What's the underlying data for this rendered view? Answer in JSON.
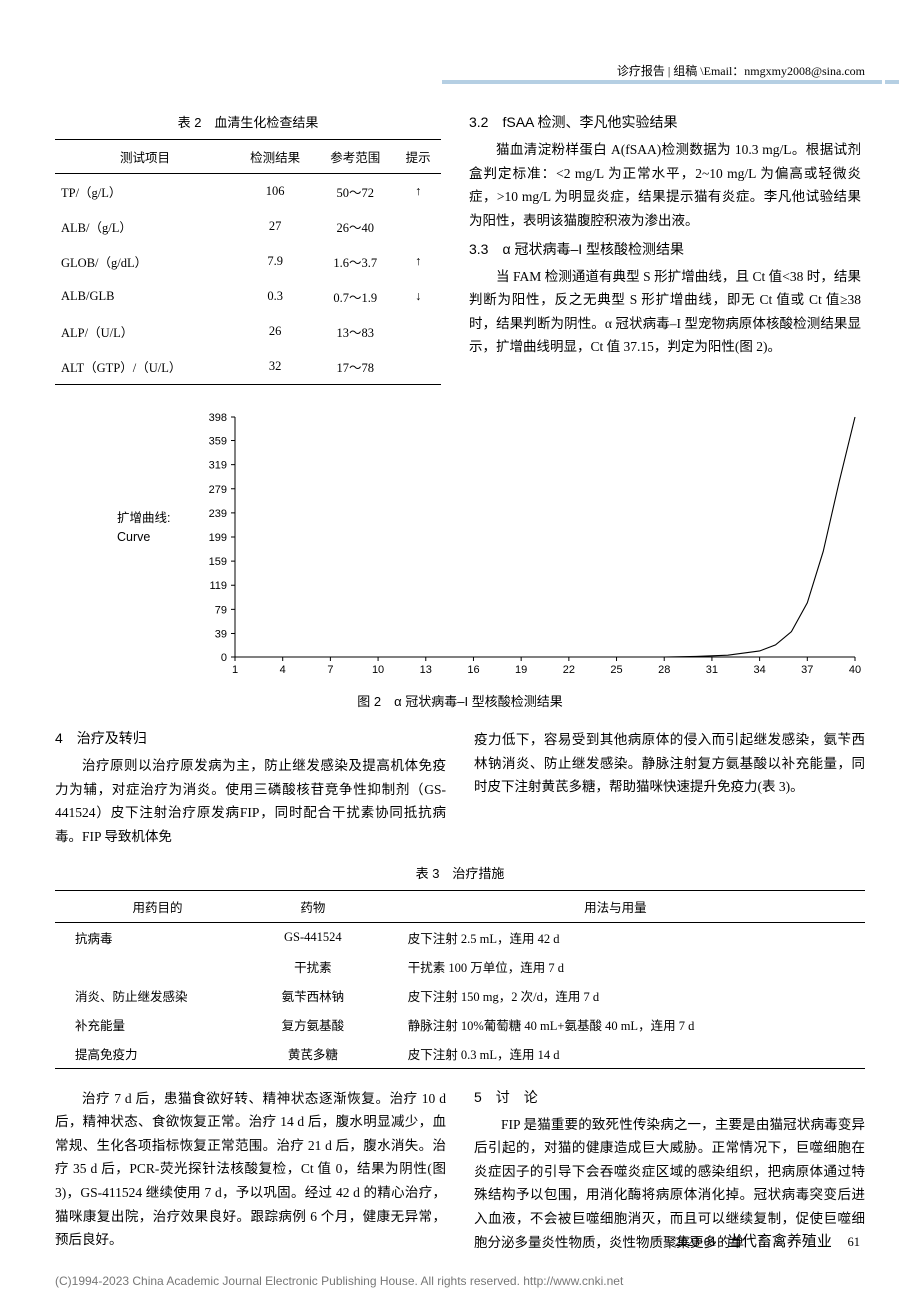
{
  "header": {
    "text": "诊疗报告 | 组稿 \\Email：nmgxmy2008@sina.com"
  },
  "table2": {
    "caption": "表 2　血清生化检查结果",
    "columns": [
      "测试项目",
      "检测结果",
      "参考范围",
      "提示"
    ],
    "rows": [
      [
        "TP/（g/L）",
        "106",
        "50～72",
        "↑"
      ],
      [
        "ALB/（g/L）",
        "27",
        "26～40",
        ""
      ],
      [
        "GLOB/（g/dL）",
        "7.9",
        "1.6～3.7",
        "↑"
      ],
      [
        "ALB/GLB",
        "0.3",
        "0.7～1.9",
        "↓"
      ],
      [
        "ALP/（U/L）",
        "26",
        "13～83",
        ""
      ],
      [
        "ALT（GTP）/（U/L）",
        "32",
        "17～78",
        ""
      ]
    ]
  },
  "section32": {
    "heading": "3.2　fSAA 检测、李凡他实验结果",
    "body": "猫血清淀粉样蛋白 A(fSAA)检测数据为 10.3 mg/L。根据试剂盒判定标准：<2 mg/L 为正常水平，2~10 mg/L 为偏高或轻微炎症，>10 mg/L 为明显炎症，结果提示猫有炎症。李凡他试验结果为阳性，表明该猫腹腔积液为渗出液。"
  },
  "section33": {
    "heading": "3.3　α 冠状病毒–I 型核酸检测结果",
    "body": "当 FAM 检测通道有典型 S 形扩增曲线，且 Ct 值<38 时，结果判断为阳性，反之无典型 S 形扩增曲线，即无 Ct 值或 Ct 值≥38 时，结果判断为阴性。α 冠状病毒–I 型宠物病原体核酸检测结果显示，扩增曲线明显，Ct 值 37.15，判定为阳性(图 2)。"
  },
  "chart": {
    "type": "line",
    "y_label_line1": "扩增曲线:",
    "y_label_line2": "Curve",
    "x_ticks": [
      1,
      4,
      7,
      10,
      13,
      16,
      19,
      22,
      25,
      28,
      31,
      34,
      37,
      40
    ],
    "y_ticks": [
      0,
      39,
      79,
      119,
      159,
      199,
      239,
      279,
      319,
      359,
      398
    ],
    "ylim": [
      0,
      398
    ],
    "xlim": [
      1,
      40
    ],
    "line_color": "#000000",
    "line_width": 1.1,
    "axis_color": "#000000",
    "background_color": "#ffffff",
    "tick_fontsize": 11,
    "series": [
      {
        "x": 1,
        "y": 0
      },
      {
        "x": 4,
        "y": 0
      },
      {
        "x": 7,
        "y": 0
      },
      {
        "x": 10,
        "y": 0
      },
      {
        "x": 13,
        "y": 0
      },
      {
        "x": 16,
        "y": 0
      },
      {
        "x": 19,
        "y": 0
      },
      {
        "x": 22,
        "y": 0
      },
      {
        "x": 25,
        "y": 0
      },
      {
        "x": 28,
        "y": 0
      },
      {
        "x": 30,
        "y": 1
      },
      {
        "x": 32,
        "y": 3
      },
      {
        "x": 34,
        "y": 10
      },
      {
        "x": 35,
        "y": 20
      },
      {
        "x": 36,
        "y": 42
      },
      {
        "x": 37,
        "y": 90
      },
      {
        "x": 38,
        "y": 175
      },
      {
        "x": 39,
        "y": 290
      },
      {
        "x": 40,
        "y": 398
      }
    ],
    "caption": "图 2　α 冠状病毒–I 型核酸检测结果"
  },
  "section4": {
    "heading": "4　治疗及转归",
    "body_left": "治疗原则以治疗原发病为主，防止继发感染及提高机体免疫力为辅，对症治疗为消炎。使用三磷酸核苷竞争性抑制剂（GS-441524）皮下注射治疗原发病FIP，同时配合干扰素协同抵抗病毒。FIP 导致机体免",
    "body_right": "疫力低下，容易受到其他病原体的侵入而引起继发感染，氨苄西林钠消炎、防止继发感染。静脉注射复方氨基酸以补充能量，同时皮下注射黄芪多糖，帮助猫咪快速提升免疫力(表 3)。"
  },
  "table3": {
    "caption": "表 3　治疗措施",
    "columns": [
      "用药目的",
      "药物",
      "用法与用量"
    ],
    "rows": [
      [
        "抗病毒",
        "GS-441524",
        "皮下注射 2.5 mL，连用 42 d"
      ],
      [
        "",
        "干扰素",
        "干扰素 100 万单位，连用 7 d"
      ],
      [
        "消炎、防止继发感染",
        "氨苄西林钠",
        "皮下注射 150 mg，2 次/d，连用 7 d"
      ],
      [
        "补充能量",
        "复方氨基酸",
        "静脉注射 10%葡萄糖 40 mL+氨基酸 40 mL，连用 7 d"
      ],
      [
        "提高免疫力",
        "黄芪多糖",
        "皮下注射 0.3 mL，连用 14 d"
      ]
    ]
  },
  "bottom": {
    "left": "治疗 7 d 后，患猫食欲好转、精神状态逐渐恢复。治疗 10 d 后，精神状态、食欲恢复正常。治疗 14 d 后，腹水明显减少，血常规、生化各项指标恢复正常范围。治疗 21 d 后，腹水消失。治疗 35 d 后，PCR-荧光探针法核酸复检，Ct 值 0，结果为阴性(图 3)，GS-411524 继续使用 7 d，予以巩固。经过 42 d 的精心治疗，猫咪康复出院，治疗效果良好。跟踪病例 6 个月，健康无异常，预后良好。",
    "right_heading": "5　讨　论",
    "right": "FIP 是猫重要的致死性传染病之一，主要是由猫冠状病毒变异后引起的，对猫的健康造成巨大威胁。正常情况下，巨噬细胞在炎症因子的引导下会吞噬炎症区域的感染组织，把病原体通过特殊结构予以包围，用消化酶将病原体消化掉。冠状病毒突变后进入血液，不会被巨噬细胞消灭，而且可以继续复制，促使巨噬细胞分泌多量炎性物质，炎性物质聚集更多的单"
  },
  "footer": {
    "issue": "2023·01 ·",
    "journal": "当代畜禽养殖业",
    "page": "61"
  },
  "copyright": "(C)1994-2023 China Academic Journal Electronic Publishing House. All rights reserved.    http://www.cnki.net"
}
